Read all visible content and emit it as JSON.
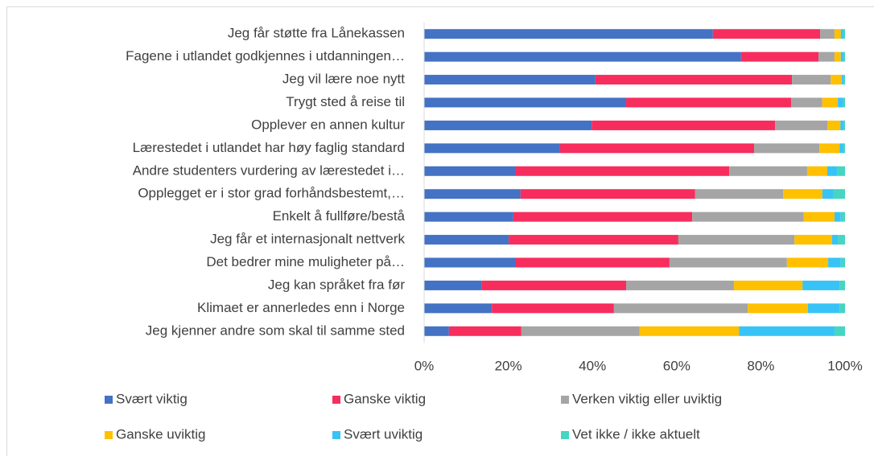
{
  "chart_data": {
    "type": "stacked_barh",
    "categories": [
      "Jeg får støtte fra Lånekassen",
      "Fagene i utlandet godkjennes i utdanningen…",
      "Jeg vil lære noe nytt",
      "Trygt sted å reise til",
      "Opplever en annen kultur",
      "Lærestedet i utlandet har høy faglig standard",
      "Andre studenters vurdering av lærestedet i…",
      "Opplegget er i stor grad forhåndsbestemt,…",
      "Enkelt å fullføre/bestå",
      "Jeg får et internasjonalt nettverk",
      "Det bedrer mine muligheter på…",
      "Jeg kan språket fra før",
      "Klimaet er annerledes enn i Norge",
      "Jeg kjenner andre som skal til samme sted"
    ],
    "series": [
      {
        "name": "Svært viktig",
        "color": "#4472c4",
        "values": [
          68.6,
          75.3,
          40.7,
          48.0,
          39.8,
          32.3,
          21.6,
          22.9,
          21.2,
          20.1,
          21.8,
          13.6,
          16.1,
          5.9
        ]
      },
      {
        "name": "Ganske viktig",
        "color": "#f72d5e",
        "values": [
          25.5,
          18.4,
          46.7,
          39.2,
          43.6,
          46.1,
          50.9,
          41.5,
          42.5,
          40.3,
          36.5,
          34.4,
          29.0,
          17.2
        ]
      },
      {
        "name": "Verken viktig eller uviktig",
        "color": "#a5a5a5",
        "values": [
          3.4,
          3.8,
          9.2,
          7.4,
          12.4,
          15.5,
          18.5,
          20.9,
          26.5,
          27.6,
          27.9,
          25.6,
          31.8,
          28.1
        ]
      },
      {
        "name": "Ganske uviktig",
        "color": "#ffc000",
        "values": [
          1.5,
          1.5,
          2.6,
          3.7,
          3.1,
          4.8,
          4.8,
          9.3,
          7.3,
          8.9,
          9.8,
          16.3,
          14.3,
          23.6
        ]
      },
      {
        "name": "Svært uviktig",
        "color": "#38c3f6",
        "values": [
          0.6,
          0.6,
          0.4,
          1.3,
          0.7,
          0.9,
          2.3,
          2.7,
          1.5,
          1.4,
          3.0,
          8.8,
          7.5,
          22.7
        ]
      },
      {
        "name": "Vet ikke / ikke aktuelt",
        "color": "#45d5c1",
        "values": [
          0.4,
          0.4,
          0.4,
          0.4,
          0.4,
          0.4,
          1.9,
          2.7,
          1.0,
          1.7,
          1.0,
          1.3,
          1.3,
          2.5
        ]
      }
    ],
    "xlim": [
      0,
      100
    ],
    "xticks": [
      {
        "value": 0,
        "label": "0%"
      },
      {
        "value": 20,
        "label": "20%"
      },
      {
        "value": 40,
        "label": "40%"
      },
      {
        "value": 60,
        "label": "60%"
      },
      {
        "value": 80,
        "label": "80%"
      },
      {
        "value": 100,
        "label": "100%"
      }
    ]
  }
}
